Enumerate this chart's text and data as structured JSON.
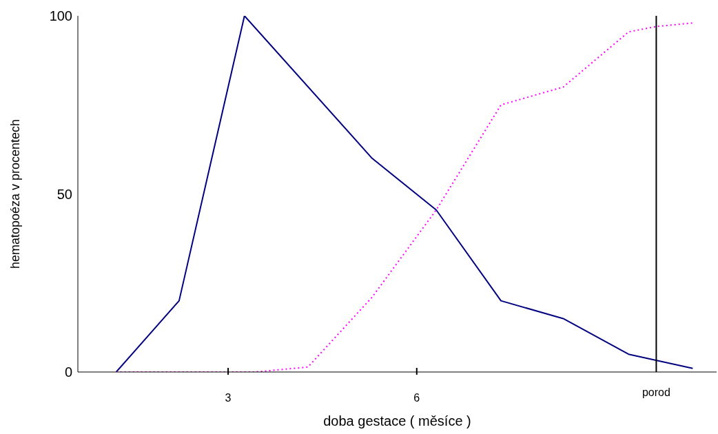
{
  "chart_data": {
    "type": "line",
    "xlabel": "doba  gestace ( měsíce )",
    "ylabel": "hematopoéza v procentech",
    "xlim": [
      0.61,
      10.77
    ],
    "xticks": [
      3,
      6
    ],
    "ylim": [
      0,
      100
    ],
    "yticks": [
      0,
      50,
      100
    ],
    "grid": false,
    "legend": false,
    "marker": "none",
    "series": [
      {
        "color": "#000080",
        "line_style": "solid",
        "x": [
          1.22,
          2.22,
          3.26,
          5.29,
          6.31,
          7.34,
          8.33,
          9.37,
          10.39
        ],
        "values": [
          0,
          20,
          100,
          60,
          45.5,
          20,
          15,
          5,
          1
        ]
      },
      {
        "color": "#ff00ff",
        "line_style": "dotted",
        "x": [
          1.22,
          3.43,
          4.27,
          5.29,
          6.31,
          7.34,
          8.33,
          9.37,
          9.81,
          10.39
        ],
        "values": [
          0,
          0,
          1.4,
          21,
          45.5,
          75,
          80,
          95.5,
          97,
          98
        ]
      }
    ],
    "ref_lines": [
      {
        "axis": "x",
        "value": 9.81,
        "label": "porod",
        "color": "#000000",
        "line_style": "solid"
      }
    ]
  }
}
